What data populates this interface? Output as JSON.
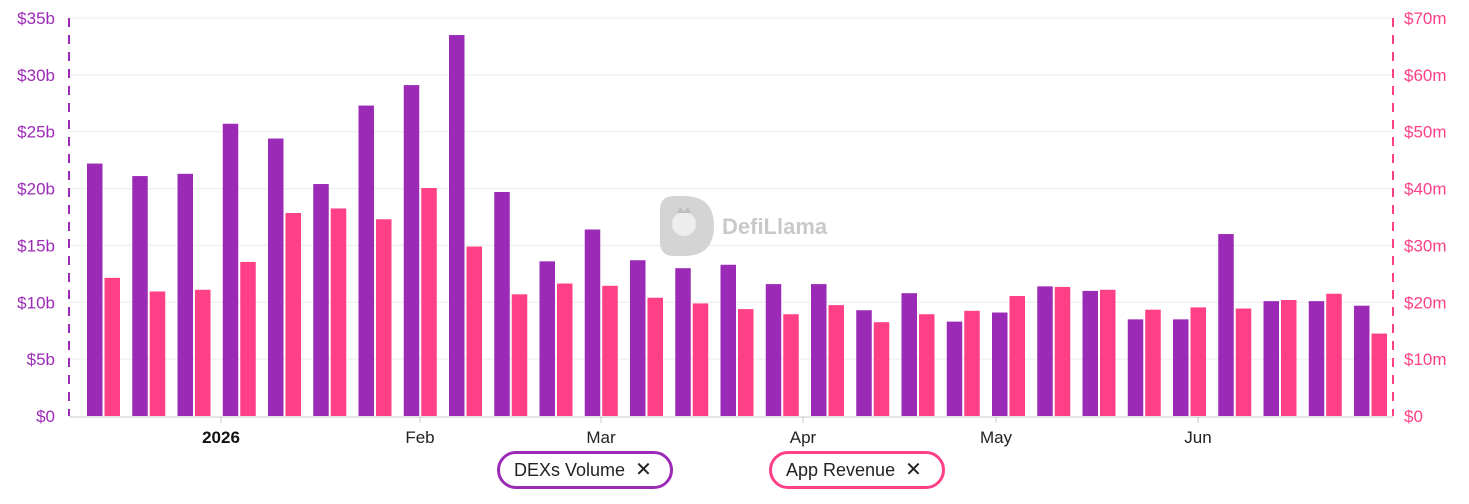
{
  "chart_data": {
    "type": "bar",
    "watermark": "DefiLlama",
    "x_tick_labels": [
      "2026",
      "Feb",
      "Mar",
      "Apr",
      "May",
      "Jun"
    ],
    "left_axis": {
      "ticks": [
        "$0",
        "$5b",
        "$10b",
        "$15b",
        "$20b",
        "$25b",
        "$30b",
        "$35b"
      ],
      "ylim": [
        0,
        35
      ],
      "unit": "billion USD"
    },
    "right_axis": {
      "ticks": [
        "$0",
        "$10m",
        "$20m",
        "$30m",
        "$40m",
        "$50m",
        "$60m",
        "$70m"
      ],
      "ylim": [
        0,
        70
      ],
      "unit": "million USD"
    },
    "grid": true,
    "legend_position": "bottom-center",
    "colors": {
      "dex": "#9b2bb7",
      "rev": "#ff3f86"
    },
    "series": [
      {
        "name": "DEXs Volume",
        "axis": "left",
        "values": [
          22.2,
          21.1,
          21.3,
          25.7,
          24.4,
          20.4,
          27.3,
          29.1,
          33.5,
          19.7,
          13.6,
          16.4,
          13.7,
          13.0,
          13.3,
          11.6,
          11.6,
          9.3,
          10.8,
          8.3,
          9.1,
          11.4,
          11.0,
          8.5,
          8.5,
          16.0,
          10.1,
          10.1,
          9.7
        ]
      },
      {
        "name": "App Revenue",
        "axis": "right",
        "values": [
          24.3,
          21.9,
          22.2,
          27.1,
          35.7,
          36.5,
          34.6,
          40.1,
          29.8,
          21.4,
          23.3,
          22.9,
          20.8,
          19.8,
          18.8,
          17.9,
          19.5,
          16.5,
          17.9,
          18.5,
          21.1,
          22.7,
          22.2,
          18.7,
          19.1,
          18.9,
          20.4,
          21.5,
          14.5
        ]
      }
    ]
  },
  "legend": {
    "dex_label": "DEXs Volume",
    "rev_label": "App Revenue",
    "remove_glyph": "✕"
  }
}
